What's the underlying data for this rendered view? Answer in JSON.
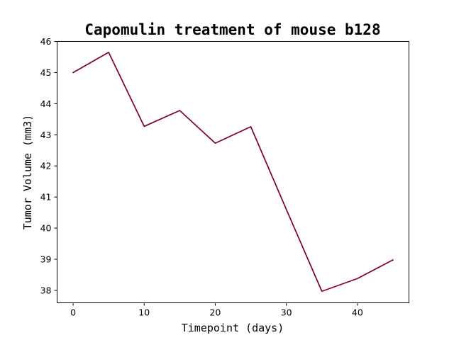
{
  "chart_data": {
    "type": "line",
    "title": "Capomulin treatment of mouse b128",
    "xlabel": "Timepoint (days)",
    "ylabel": "Tumor Volume (mm3)",
    "xlim": [
      -2.25,
      47.25
    ],
    "ylim": [
      37.6,
      46.0
    ],
    "xticks": [
      0,
      10,
      20,
      30,
      40
    ],
    "yticks": [
      38,
      39,
      40,
      41,
      42,
      43,
      44,
      45,
      46
    ],
    "grid": false,
    "series": [
      {
        "color": "#800020",
        "x": [
          0,
          5,
          10,
          15,
          20,
          25,
          30,
          35,
          40,
          45
        ],
        "y": [
          45.0,
          45.65,
          43.27,
          43.78,
          42.73,
          43.26,
          40.6,
          37.97,
          38.38,
          38.98
        ]
      }
    ]
  }
}
